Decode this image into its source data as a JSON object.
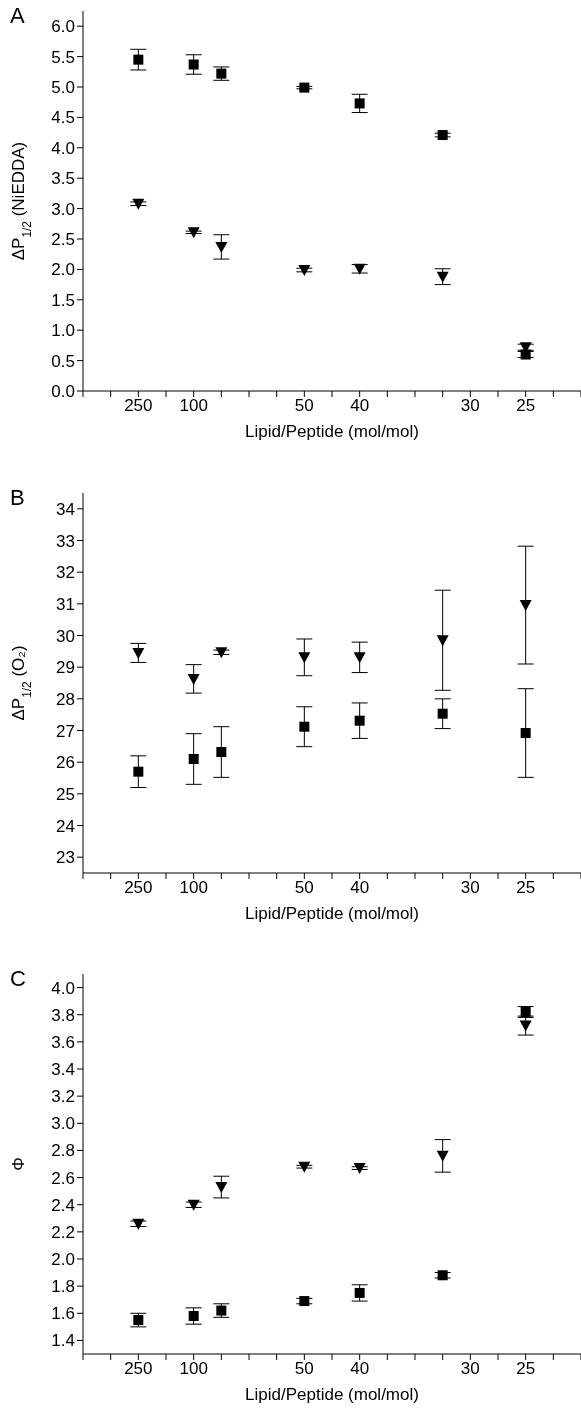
{
  "chart_data": [
    {
      "type": "scatter",
      "title": "A",
      "xlabel": "Lipid/Peptide (mol/mol)",
      "ylabel": "ΔP$_{1/2}$ (NiEDDA)",
      "categories": [
        null,
        null,
        "250",
        null,
        "100",
        null,
        null,
        null,
        "50",
        null,
        "40",
        null,
        null,
        null,
        "30",
        null,
        "25",
        null,
        null
      ],
      "ylim": [
        0,
        6.25
      ],
      "yticks": [
        {
          "value": 0,
          "label": "0.0"
        },
        0.5,
        {
          "value": 1,
          "label": "1.0"
        },
        1.5,
        {
          "value": 2,
          "label": "2.0"
        },
        2.5,
        {
          "value": 3,
          "label": "3.0"
        },
        3.5,
        {
          "value": 4,
          "label": "4.0"
        },
        4.5,
        {
          "value": 5,
          "label": "5.0"
        },
        5.5,
        {
          "value": 6,
          "label": "6.0"
        }
      ],
      "series": [
        {
          "color": "#000000",
          "marker": "square",
          "values": [
            null,
            null,
            5.45,
            null,
            5.37,
            5.22,
            null,
            null,
            4.99,
            null,
            4.73,
            null,
            null,
            4.21,
            null,
            null,
            0.6,
            null,
            null
          ],
          "errors": [
            null,
            null,
            0.17,
            null,
            0.16,
            0.11,
            null,
            null,
            0.02,
            null,
            0.15,
            null,
            null,
            0.03,
            null,
            null,
            0.05,
            null,
            null
          ]
        },
        {
          "color": "#000000",
          "marker": "triangle",
          "values": [
            null,
            null,
            3.08,
            null,
            2.61,
            2.37,
            null,
            null,
            1.99,
            null,
            2.01,
            null,
            null,
            1.88,
            null,
            null,
            0.72,
            null,
            null
          ],
          "errors": [
            null,
            null,
            0.03,
            null,
            0.02,
            0.2,
            null,
            null,
            0.03,
            null,
            0.07,
            null,
            null,
            0.13,
            null,
            null,
            0.05,
            null,
            null
          ]
        }
      ]
    },
    {
      "type": "scatter",
      "title": "B",
      "xlabel": "Lipid/Peptide (mol/mol)",
      "ylabel": "ΔP$_{1/2}$ (O₂)",
      "categories": [
        null,
        null,
        "250",
        null,
        "100",
        null,
        null,
        null,
        "50",
        null,
        "40",
        null,
        null,
        null,
        "30",
        null,
        "25",
        null,
        null
      ],
      "ylim": [
        22.5,
        34.5
      ],
      "yticks": [
        23,
        24,
        25,
        26,
        27,
        28,
        29,
        30,
        31,
        32,
        33,
        34
      ],
      "series": [
        {
          "color": "#000000",
          "marker": "square",
          "values": [
            null,
            null,
            25.7,
            null,
            26.1,
            26.32,
            null,
            null,
            27.12,
            null,
            27.31,
            null,
            null,
            27.53,
            null,
            null,
            26.92,
            null,
            null
          ],
          "errors": [
            null,
            null,
            0.5,
            null,
            0.8,
            0.8,
            null,
            null,
            0.63,
            null,
            0.56,
            null,
            null,
            0.47,
            null,
            null,
            1.4,
            null,
            null
          ]
        },
        {
          "color": "#000000",
          "marker": "triangle",
          "values": [
            null,
            null,
            29.45,
            null,
            28.63,
            29.47,
            null,
            null,
            29.31,
            null,
            29.31,
            null,
            null,
            29.85,
            null,
            null,
            30.96,
            null,
            null
          ],
          "errors": [
            null,
            null,
            0.3,
            null,
            0.45,
            0.07,
            null,
            null,
            0.58,
            null,
            0.48,
            null,
            null,
            1.58,
            null,
            null,
            1.86,
            null,
            null
          ]
        }
      ]
    },
    {
      "type": "scatter",
      "title": "C",
      "xlabel": "Lipid/Peptide (mol/mol)",
      "ylabel": "Φ",
      "categories": [
        null,
        null,
        "250",
        null,
        "100",
        null,
        null,
        null,
        "50",
        null,
        "40",
        null,
        null,
        null,
        "30",
        null,
        "25",
        null,
        null
      ],
      "ylim": [
        1.3,
        4.1
      ],
      "yticks": [
        1.4,
        1.6,
        1.8,
        {
          "value": 2,
          "label": "2.0"
        },
        2.2,
        2.4,
        2.6,
        2.8,
        {
          "value": 3,
          "label": "3.0"
        },
        3.2,
        3.4,
        3.6,
        3.8,
        {
          "value": 4,
          "label": "4.0"
        }
      ],
      "series": [
        {
          "color": "#000000",
          "marker": "square",
          "values": [
            null,
            null,
            1.55,
            null,
            1.58,
            1.62,
            null,
            null,
            1.69,
            null,
            1.75,
            null,
            null,
            1.88,
            null,
            null,
            3.82,
            null,
            null
          ],
          "errors": [
            null,
            null,
            0.05,
            null,
            0.06,
            0.05,
            null,
            null,
            0.02,
            null,
            0.06,
            null,
            null,
            0.02,
            null,
            null,
            0.04,
            null,
            null
          ]
        },
        {
          "color": "#000000",
          "marker": "triangle",
          "values": [
            null,
            null,
            2.26,
            null,
            2.4,
            2.53,
            null,
            null,
            2.68,
            null,
            2.67,
            null,
            null,
            2.76,
            null,
            null,
            3.72,
            null,
            null
          ],
          "errors": [
            null,
            null,
            0.02,
            null,
            0.02,
            0.08,
            null,
            null,
            0.01,
            null,
            0.01,
            null,
            null,
            0.12,
            null,
            null,
            0.07,
            null,
            null
          ]
        }
      ]
    }
  ]
}
